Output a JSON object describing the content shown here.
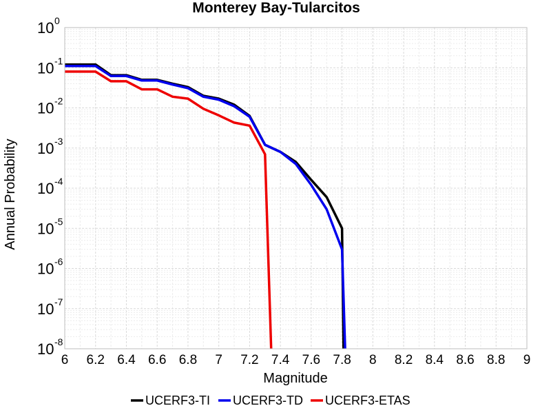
{
  "chart_data": {
    "type": "line",
    "title": "Monterey Bay-Tularcitos",
    "xlabel": "Magnitude",
    "ylabel": "Annual Probability",
    "xlim": [
      6,
      9
    ],
    "ylim": [
      1e-08,
      1
    ],
    "yscale": "log",
    "grid": true,
    "legend_position": "bottom",
    "x_ticks": [
      "6",
      "6.2",
      "6.4",
      "6.6",
      "6.8",
      "7",
      "7.2",
      "7.4",
      "7.6",
      "7.8",
      "8",
      "8.2",
      "8.4",
      "8.6",
      "8.8",
      "9"
    ],
    "y_ticks": [
      {
        "base": "10",
        "exp": "0",
        "value": 1
      },
      {
        "base": "10",
        "exp": "-1",
        "value": 0.1
      },
      {
        "base": "10",
        "exp": "-2",
        "value": 0.01
      },
      {
        "base": "10",
        "exp": "-3",
        "value": 0.001
      },
      {
        "base": "10",
        "exp": "-4",
        "value": 0.0001
      },
      {
        "base": "10",
        "exp": "-5",
        "value": 1e-05
      },
      {
        "base": "10",
        "exp": "-6",
        "value": 1e-06
      },
      {
        "base": "10",
        "exp": "-7",
        "value": 1e-07
      },
      {
        "base": "10",
        "exp": "-8",
        "value": 1e-08
      }
    ],
    "series": [
      {
        "name": "UCERF3-TI",
        "color": "#000000",
        "x": [
          6.0,
          6.1,
          6.2,
          6.3,
          6.4,
          6.5,
          6.6,
          6.7,
          6.8,
          6.9,
          7.0,
          7.1,
          7.2,
          7.3,
          7.4,
          7.5,
          7.6,
          7.7,
          7.8,
          7.81
        ],
        "y": [
          0.12,
          0.12,
          0.12,
          0.065,
          0.065,
          0.05,
          0.05,
          0.04,
          0.033,
          0.02,
          0.017,
          0.012,
          0.0063,
          0.0012,
          0.0008,
          0.00045,
          0.00016,
          6e-05,
          1e-05,
          1e-08
        ]
      },
      {
        "name": "UCERF3-TD",
        "color": "#0000ee",
        "x": [
          6.0,
          6.1,
          6.2,
          6.3,
          6.4,
          6.5,
          6.6,
          6.7,
          6.8,
          6.9,
          7.0,
          7.1,
          7.2,
          7.3,
          7.4,
          7.5,
          7.6,
          7.7,
          7.8,
          7.82
        ],
        "y": [
          0.11,
          0.11,
          0.11,
          0.062,
          0.062,
          0.048,
          0.048,
          0.038,
          0.031,
          0.019,
          0.016,
          0.011,
          0.006,
          0.0012,
          0.0008,
          0.0004,
          0.00012,
          3e-05,
          3e-06,
          1e-08
        ]
      },
      {
        "name": "UCERF3-ETAS",
        "color": "#ee0000",
        "x": [
          6.0,
          6.1,
          6.2,
          6.3,
          6.4,
          6.5,
          6.6,
          6.7,
          6.8,
          6.9,
          7.0,
          7.1,
          7.2,
          7.3,
          7.34
        ],
        "y": [
          0.08,
          0.08,
          0.08,
          0.046,
          0.046,
          0.029,
          0.029,
          0.019,
          0.017,
          0.0095,
          0.0065,
          0.0043,
          0.0036,
          0.0007,
          1e-08
        ]
      }
    ]
  }
}
